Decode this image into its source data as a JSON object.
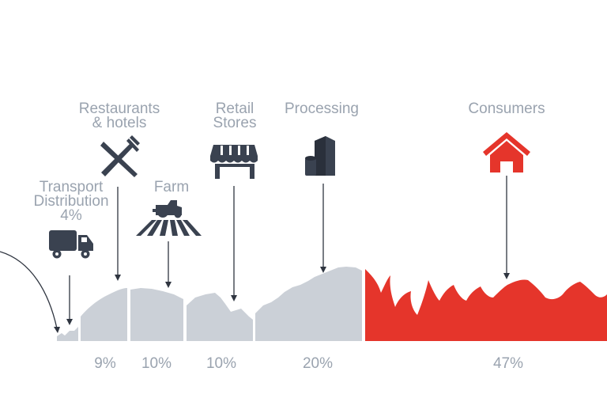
{
  "title": "",
  "colors": {
    "gray_text": "#9aa3af",
    "gray_shape": "#cbd0d7",
    "icon_dark": "#3a4250",
    "accent_red": "#e5352b"
  },
  "categories": [
    {
      "key": "transport",
      "label_line1": "Transport",
      "label_line2": "Distribution",
      "label_line3": "4%",
      "icon": "truck-icon"
    },
    {
      "key": "restaurants",
      "label_line1": "Restaurants",
      "label_line2": "& hotels",
      "percent": "9%",
      "icon": "fork-knife-icon"
    },
    {
      "key": "farm",
      "label_line1": "Farm",
      "percent": "10%",
      "icon": "tractor-icon"
    },
    {
      "key": "retail",
      "label_line1": "Retail",
      "label_line2": "Stores",
      "percent": "10%",
      "icon": "storefront-icon"
    },
    {
      "key": "processing",
      "label_line1": "Processing",
      "percent": "20%",
      "icon": "factory-icon"
    },
    {
      "key": "consumers",
      "label_line1": "Consumers",
      "percent": "47%",
      "icon": "house-icon"
    }
  ]
}
